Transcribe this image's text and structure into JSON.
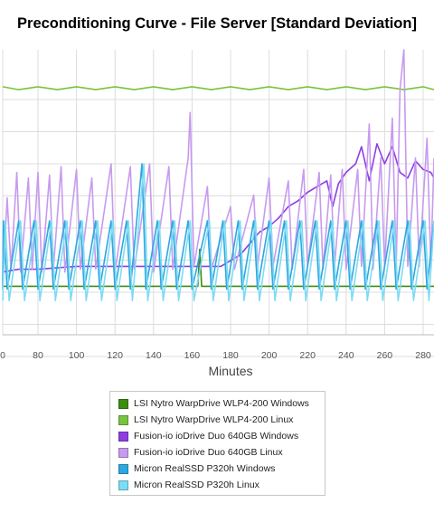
{
  "chart_data": {
    "type": "line",
    "title": "Preconditioning Curve - File Server [Standard Deviation]",
    "xlabel": "Minutes",
    "ylabel": "",
    "x_ticks": [
      "0",
      "80",
      "100",
      "120",
      "140",
      "160",
      "180",
      "200",
      "220",
      "240",
      "260",
      "280"
    ],
    "xlim": [
      60,
      288
    ],
    "ylim": [
      0,
      100
    ],
    "grid": true,
    "legend_position": "bottom",
    "series": [
      {
        "name": "LSI Nytro WarpDrive WLP4-200 Windows",
        "color": "#3d8c12",
        "points": [
          [
            60,
            17
          ],
          [
            100,
            17
          ],
          [
            140,
            17
          ],
          [
            163,
            17
          ],
          [
            164,
            30
          ],
          [
            165,
            17
          ],
          [
            200,
            17
          ],
          [
            240,
            17
          ],
          [
            288,
            17
          ]
        ]
      },
      {
        "name": "LSI Nytro WarpDrive WLP4-200 Linux",
        "color": "#77c440",
        "points": [
          [
            60,
            87
          ],
          [
            70,
            86
          ],
          [
            80,
            87
          ],
          [
            90,
            86
          ],
          [
            100,
            87
          ],
          [
            110,
            86
          ],
          [
            120,
            87
          ],
          [
            130,
            86
          ],
          [
            140,
            87
          ],
          [
            150,
            86
          ],
          [
            160,
            87
          ],
          [
            170,
            86
          ],
          [
            180,
            87
          ],
          [
            190,
            86
          ],
          [
            200,
            87
          ],
          [
            210,
            86
          ],
          [
            220,
            87
          ],
          [
            230,
            86
          ],
          [
            240,
            87
          ],
          [
            250,
            86
          ],
          [
            260,
            87
          ],
          [
            270,
            86
          ],
          [
            280,
            87
          ],
          [
            288,
            86
          ]
        ]
      },
      {
        "name": "Fusion-io ioDrive Duo 640GB Windows",
        "color": "#8e3fe0",
        "points": [
          [
            60,
            22
          ],
          [
            70,
            23
          ],
          [
            80,
            23
          ],
          [
            100,
            24
          ],
          [
            120,
            24
          ],
          [
            140,
            24
          ],
          [
            160,
            24
          ],
          [
            175,
            24
          ],
          [
            180,
            26
          ],
          [
            185,
            28
          ],
          [
            190,
            32
          ],
          [
            195,
            36
          ],
          [
            200,
            38
          ],
          [
            205,
            41
          ],
          [
            210,
            45
          ],
          [
            215,
            47
          ],
          [
            220,
            50
          ],
          [
            225,
            52
          ],
          [
            230,
            54
          ],
          [
            233,
            45
          ],
          [
            236,
            53
          ],
          [
            240,
            57
          ],
          [
            245,
            60
          ],
          [
            248,
            66
          ],
          [
            252,
            54
          ],
          [
            256,
            67
          ],
          [
            260,
            60
          ],
          [
            264,
            66
          ],
          [
            268,
            57
          ],
          [
            272,
            55
          ],
          [
            276,
            61
          ],
          [
            280,
            58
          ],
          [
            284,
            57
          ],
          [
            288,
            55
          ]
        ]
      },
      {
        "name": "Fusion-io ioDrive Duo 640GB Linux",
        "color": "#c79aef",
        "points": [
          [
            60,
            19
          ],
          [
            62,
            22
          ],
          [
            64,
            48
          ],
          [
            66,
            23
          ],
          [
            69,
            57
          ],
          [
            71,
            22
          ],
          [
            75,
            55
          ],
          [
            77,
            23
          ],
          [
            80,
            57
          ],
          [
            82,
            22
          ],
          [
            86,
            56
          ],
          [
            88,
            23
          ],
          [
            92,
            59
          ],
          [
            94,
            22
          ],
          [
            100,
            58
          ],
          [
            102,
            23
          ],
          [
            108,
            55
          ],
          [
            110,
            23
          ],
          [
            118,
            60
          ],
          [
            120,
            22
          ],
          [
            128,
            59
          ],
          [
            130,
            23
          ],
          [
            138,
            60
          ],
          [
            140,
            22
          ],
          [
            148,
            59
          ],
          [
            150,
            23
          ],
          [
            158,
            62
          ],
          [
            159,
            78
          ],
          [
            161,
            24
          ],
          [
            168,
            52
          ],
          [
            170,
            23
          ],
          [
            180,
            45
          ],
          [
            182,
            23
          ],
          [
            192,
            49
          ],
          [
            194,
            24
          ],
          [
            200,
            55
          ],
          [
            202,
            24
          ],
          [
            210,
            54
          ],
          [
            212,
            23
          ],
          [
            218,
            58
          ],
          [
            220,
            24
          ],
          [
            226,
            57
          ],
          [
            228,
            23
          ],
          [
            232,
            56
          ],
          [
            234,
            24
          ],
          [
            238,
            58
          ],
          [
            240,
            23
          ],
          [
            246,
            58
          ],
          [
            248,
            24
          ],
          [
            252,
            74
          ],
          [
            254,
            23
          ],
          [
            258,
            62
          ],
          [
            260,
            24
          ],
          [
            264,
            76
          ],
          [
            266,
            24
          ],
          [
            268,
            86
          ],
          [
            270,
            100
          ],
          [
            272,
            24
          ],
          [
            276,
            62
          ],
          [
            278,
            24
          ],
          [
            282,
            69
          ],
          [
            284,
            24
          ],
          [
            288,
            62
          ]
        ]
      },
      {
        "name": "Micron RealSSD P320h Windows",
        "color": "#2ea7e0",
        "points": [
          [
            60,
            16
          ],
          [
            62,
            40
          ],
          [
            64,
            16
          ],
          [
            70,
            40
          ],
          [
            72,
            16
          ],
          [
            78,
            40
          ],
          [
            80,
            16
          ],
          [
            86,
            40
          ],
          [
            88,
            16
          ],
          [
            94,
            40
          ],
          [
            96,
            16
          ],
          [
            102,
            40
          ],
          [
            104,
            16
          ],
          [
            110,
            40
          ],
          [
            112,
            16
          ],
          [
            118,
            40
          ],
          [
            120,
            16
          ],
          [
            126,
            40
          ],
          [
            128,
            16
          ],
          [
            134,
            60
          ],
          [
            136,
            16
          ],
          [
            142,
            40
          ],
          [
            144,
            16
          ],
          [
            150,
            40
          ],
          [
            152,
            16
          ],
          [
            158,
            40
          ],
          [
            160,
            16
          ],
          [
            168,
            40
          ],
          [
            170,
            16
          ],
          [
            176,
            40
          ],
          [
            178,
            16
          ],
          [
            184,
            40
          ],
          [
            186,
            16
          ],
          [
            192,
            40
          ],
          [
            194,
            16
          ],
          [
            200,
            40
          ],
          [
            202,
            16
          ],
          [
            208,
            40
          ],
          [
            210,
            16
          ],
          [
            216,
            40
          ],
          [
            218,
            16
          ],
          [
            224,
            40
          ],
          [
            226,
            16
          ],
          [
            232,
            40
          ],
          [
            234,
            16
          ],
          [
            240,
            40
          ],
          [
            242,
            16
          ],
          [
            248,
            40
          ],
          [
            250,
            16
          ],
          [
            256,
            40
          ],
          [
            258,
            16
          ],
          [
            264,
            40
          ],
          [
            266,
            16
          ],
          [
            272,
            40
          ],
          [
            274,
            16
          ],
          [
            280,
            40
          ],
          [
            282,
            16
          ],
          [
            288,
            40
          ]
        ]
      },
      {
        "name": "Micron RealSSD P320h Linux",
        "color": "#7ddcf4",
        "points": [
          [
            60,
            12
          ],
          [
            63,
            40
          ],
          [
            65,
            12
          ],
          [
            71,
            40
          ],
          [
            73,
            12
          ],
          [
            79,
            40
          ],
          [
            81,
            12
          ],
          [
            87,
            40
          ],
          [
            89,
            12
          ],
          [
            95,
            40
          ],
          [
            97,
            12
          ],
          [
            103,
            40
          ],
          [
            105,
            12
          ],
          [
            111,
            40
          ],
          [
            113,
            12
          ],
          [
            119,
            40
          ],
          [
            121,
            12
          ],
          [
            127,
            40
          ],
          [
            129,
            12
          ],
          [
            135,
            60
          ],
          [
            137,
            12
          ],
          [
            143,
            40
          ],
          [
            145,
            12
          ],
          [
            151,
            40
          ],
          [
            153,
            12
          ],
          [
            159,
            40
          ],
          [
            161,
            12
          ],
          [
            169,
            40
          ],
          [
            171,
            12
          ],
          [
            177,
            40
          ],
          [
            179,
            12
          ],
          [
            185,
            40
          ],
          [
            187,
            12
          ],
          [
            193,
            40
          ],
          [
            195,
            12
          ],
          [
            201,
            40
          ],
          [
            203,
            12
          ],
          [
            209,
            40
          ],
          [
            211,
            12
          ],
          [
            217,
            40
          ],
          [
            219,
            12
          ],
          [
            225,
            40
          ],
          [
            227,
            12
          ],
          [
            233,
            40
          ],
          [
            235,
            12
          ],
          [
            241,
            40
          ],
          [
            243,
            12
          ],
          [
            249,
            40
          ],
          [
            251,
            12
          ],
          [
            257,
            40
          ],
          [
            259,
            12
          ],
          [
            265,
            40
          ],
          [
            267,
            12
          ],
          [
            273,
            40
          ],
          [
            275,
            12
          ],
          [
            281,
            40
          ],
          [
            283,
            12
          ],
          [
            288,
            40
          ]
        ]
      }
    ]
  }
}
